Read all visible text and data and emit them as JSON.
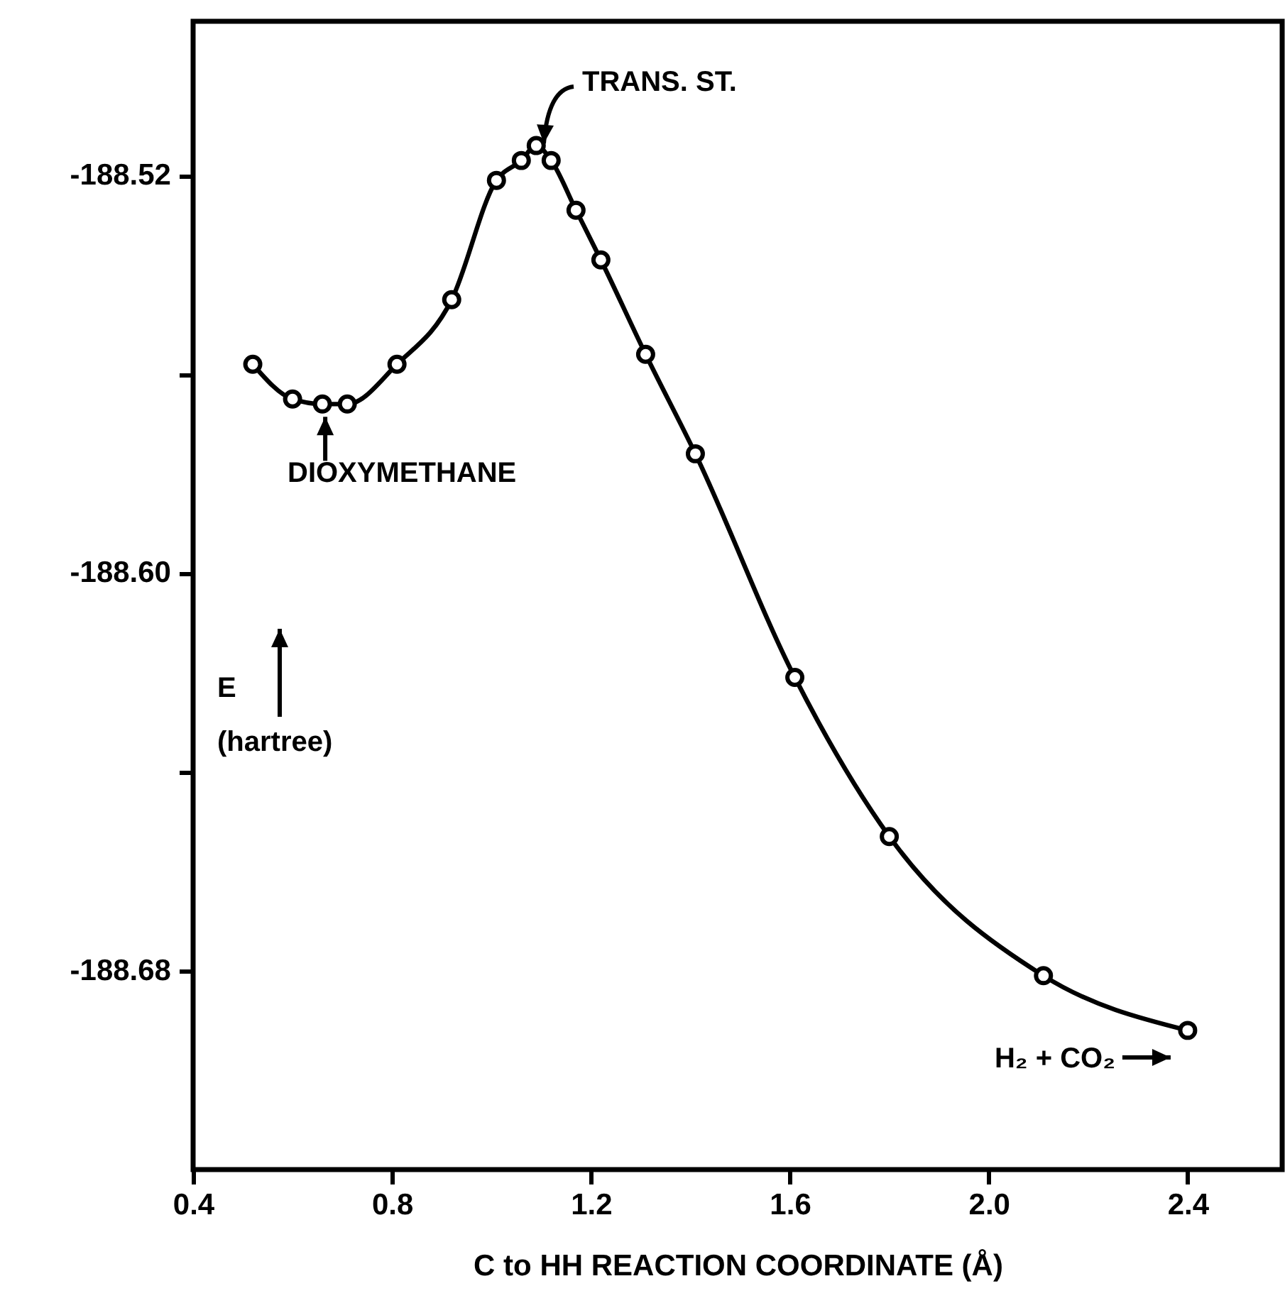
{
  "chart_data": {
    "type": "line",
    "xlabel": "C to HH REACTION COORDINATE (Å)",
    "ylabel": "E (hartree)",
    "x": [
      0.52,
      0.6,
      0.66,
      0.71,
      0.81,
      0.92,
      1.01,
      1.06,
      1.09,
      1.12,
      1.17,
      1.22,
      1.31,
      1.41,
      1.61,
      1.8,
      2.11,
      2.4
    ],
    "series": [
      {
        "color": "#000000",
        "values": [
          -188.558,
          -188.565,
          -188.566,
          -188.566,
          -188.558,
          -188.545,
          -188.521,
          -188.517,
          -188.514,
          -188.517,
          -188.527,
          -188.537,
          -188.556,
          -188.576,
          -188.621,
          -188.653,
          -188.681,
          -188.692
        ]
      }
    ],
    "xlim": [
      0.4,
      2.59
    ],
    "xticks": [
      0.4,
      0.8,
      1.2,
      1.6,
      {
        "value": 2.0,
        "label": "2.0"
      },
      2.4
    ],
    "ylim": [
      -188.72,
      -188.489
    ],
    "yticks": [
      -188.52,
      {
        "value": -188.56,
        "label": null
      },
      {
        "value": -188.6,
        "label": "-188.60"
      },
      {
        "value": -188.64,
        "label": null
      },
      -188.68
    ],
    "marker": "circle",
    "line_style": "solid",
    "annotations": [
      "TRANS. ST.",
      {
        "text": "DIOXYMETHANE",
        "x": 0.66,
        "y": -188.566
      },
      {
        "text": "H₂ + CO₂",
        "x": 2.4,
        "y": -188.692
      }
    ]
  }
}
